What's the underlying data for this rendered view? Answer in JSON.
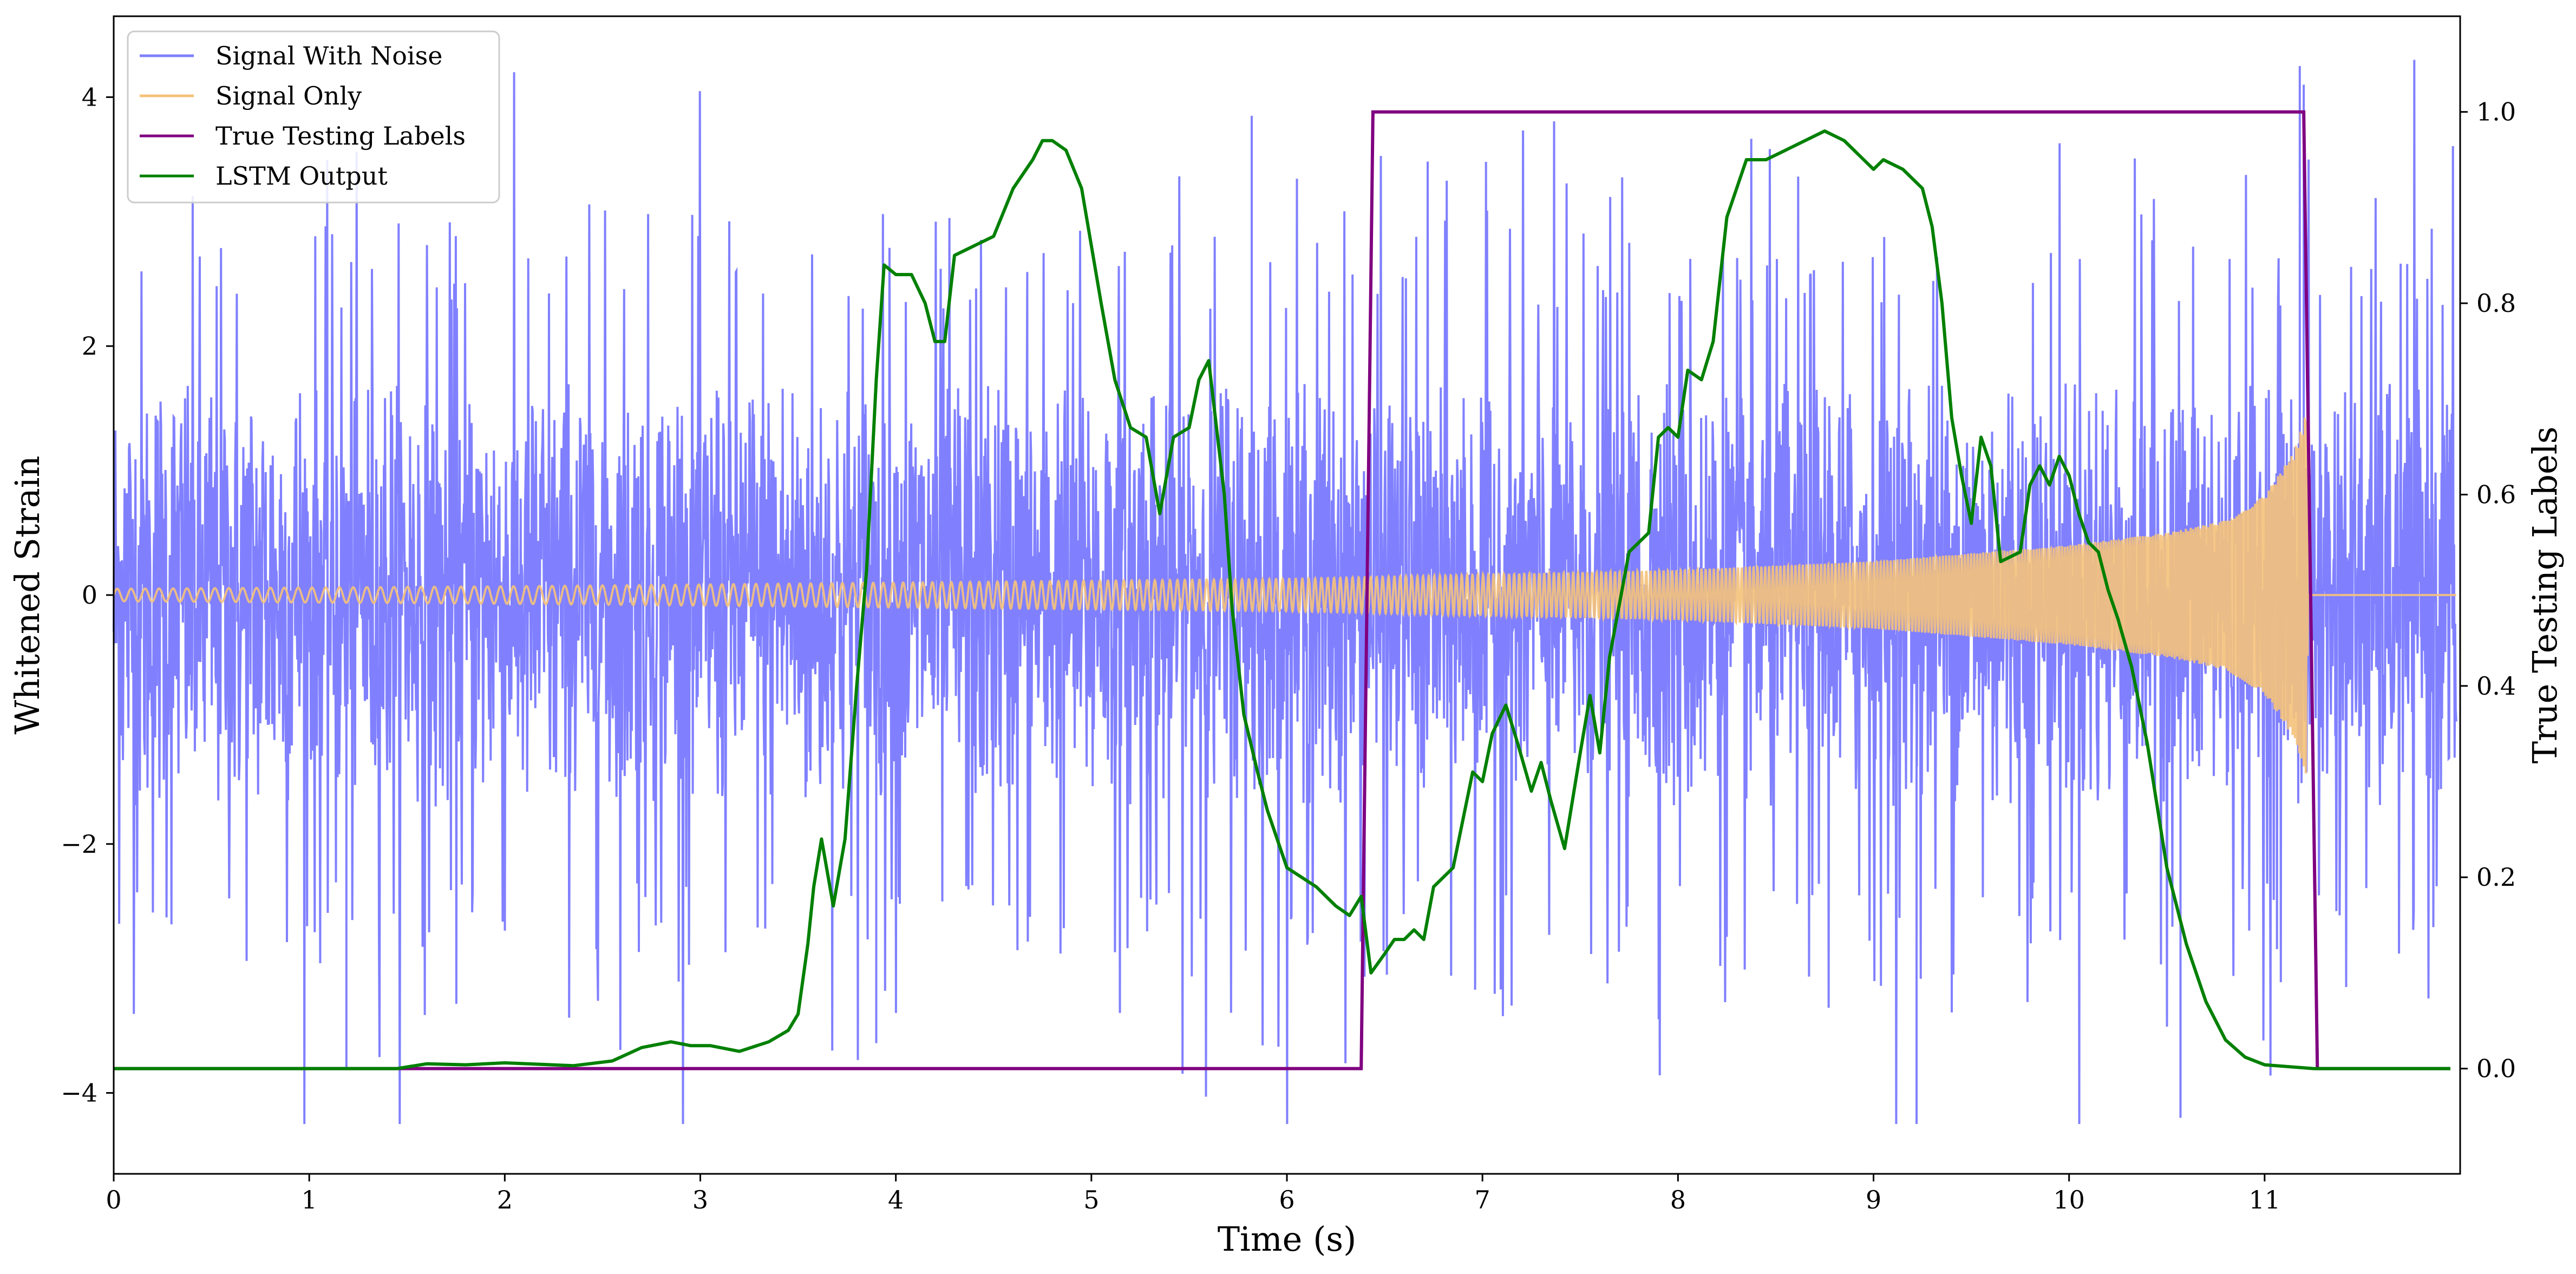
{
  "chart_data": {
    "type": "line",
    "xlabel": "Time (s)",
    "ylabel": "Whitened Strain",
    "y2label": "True Testing Labels",
    "xlim": [
      0,
      12
    ],
    "ylim": [
      -4.65,
      4.65
    ],
    "y2lim": [
      -0.11,
      1.1
    ],
    "x_ticks": [
      0,
      1,
      2,
      3,
      4,
      5,
      6,
      7,
      8,
      9,
      10,
      11
    ],
    "y_ticks": [
      -4,
      -2,
      0,
      2,
      4
    ],
    "y2_ticks": [
      0.0,
      0.2,
      0.4,
      0.6,
      0.8,
      1.0
    ],
    "grid": false,
    "legend_position": "top-left",
    "colors": {
      "signal_with_noise": "#8080ff",
      "signal_only": "#f5c27a",
      "true_testing_labels": "#800080",
      "lstm_output": "#008000"
    },
    "series": [
      {
        "name": "Signal With Noise",
        "axis": "left",
        "kind": "noise",
        "sampled_envelope": {
          "typical_abs": 1.5,
          "max": 4.3,
          "min": -4.25
        },
        "notable_spikes": [
          [
            1.19,
            -3.8
          ],
          [
            3.9,
            -3.6
          ],
          [
            5.82,
            3.85
          ],
          [
            9.22,
            -4.25
          ],
          [
            10.57,
            -4.2
          ],
          [
            11.18,
            4.25
          ],
          [
            11.2,
            4.1
          ]
        ]
      },
      {
        "name": "Signal Only",
        "axis": "left",
        "kind": "chirp",
        "amplitude_points": [
          [
            0,
            0.05
          ],
          [
            2,
            0.07
          ],
          [
            4,
            0.1
          ],
          [
            6,
            0.13
          ],
          [
            8,
            0.2
          ],
          [
            9,
            0.27
          ],
          [
            10,
            0.4
          ],
          [
            10.5,
            0.5
          ],
          [
            10.8,
            0.6
          ],
          [
            11.0,
            0.8
          ],
          [
            11.15,
            1.15
          ],
          [
            11.22,
            1.5
          ],
          [
            11.25,
            0
          ]
        ]
      },
      {
        "name": "True Testing Labels",
        "axis": "right",
        "points": [
          [
            0,
            0
          ],
          [
            6.38,
            0
          ],
          [
            6.44,
            1
          ],
          [
            11.2,
            1
          ],
          [
            11.27,
            0
          ],
          [
            11.95,
            0
          ]
        ]
      },
      {
        "name": "LSTM Output",
        "axis": "right",
        "points": [
          [
            0.0,
            0.0
          ],
          [
            0.85,
            0.0
          ],
          [
            1.45,
            0.0
          ],
          [
            1.6,
            0.005
          ],
          [
            1.8,
            0.004
          ],
          [
            2.0,
            0.006
          ],
          [
            2.35,
            0.003
          ],
          [
            2.55,
            0.008
          ],
          [
            2.7,
            0.022
          ],
          [
            2.85,
            0.028
          ],
          [
            2.95,
            0.024
          ],
          [
            3.05,
            0.024
          ],
          [
            3.2,
            0.018
          ],
          [
            3.35,
            0.028
          ],
          [
            3.45,
            0.04
          ],
          [
            3.5,
            0.057
          ],
          [
            3.55,
            0.13
          ],
          [
            3.58,
            0.19
          ],
          [
            3.62,
            0.24
          ],
          [
            3.68,
            0.17
          ],
          [
            3.74,
            0.24
          ],
          [
            3.8,
            0.4
          ],
          [
            3.85,
            0.52
          ],
          [
            3.9,
            0.72
          ],
          [
            3.94,
            0.84
          ],
          [
            4.0,
            0.83
          ],
          [
            4.08,
            0.83
          ],
          [
            4.15,
            0.8
          ],
          [
            4.2,
            0.76
          ],
          [
            4.25,
            0.76
          ],
          [
            4.3,
            0.85
          ],
          [
            4.4,
            0.86
          ],
          [
            4.5,
            0.87
          ],
          [
            4.6,
            0.92
          ],
          [
            4.7,
            0.95
          ],
          [
            4.75,
            0.97
          ],
          [
            4.8,
            0.97
          ],
          [
            4.87,
            0.96
          ],
          [
            4.95,
            0.92
          ],
          [
            5.05,
            0.8
          ],
          [
            5.12,
            0.72
          ],
          [
            5.2,
            0.67
          ],
          [
            5.28,
            0.66
          ],
          [
            5.35,
            0.58
          ],
          [
            5.42,
            0.66
          ],
          [
            5.5,
            0.67
          ],
          [
            5.55,
            0.72
          ],
          [
            5.6,
            0.74
          ],
          [
            5.68,
            0.6
          ],
          [
            5.72,
            0.48
          ],
          [
            5.78,
            0.37
          ],
          [
            5.85,
            0.31
          ],
          [
            5.9,
            0.27
          ],
          [
            6.0,
            0.21
          ],
          [
            6.15,
            0.19
          ],
          [
            6.25,
            0.17
          ],
          [
            6.32,
            0.16
          ],
          [
            6.38,
            0.18
          ],
          [
            6.43,
            0.1
          ],
          [
            6.5,
            0.12
          ],
          [
            6.55,
            0.135
          ],
          [
            6.6,
            0.135
          ],
          [
            6.65,
            0.145
          ],
          [
            6.7,
            0.135
          ],
          [
            6.75,
            0.19
          ],
          [
            6.85,
            0.21
          ],
          [
            6.95,
            0.31
          ],
          [
            7.0,
            0.3
          ],
          [
            7.05,
            0.35
          ],
          [
            7.12,
            0.38
          ],
          [
            7.18,
            0.34
          ],
          [
            7.25,
            0.29
          ],
          [
            7.3,
            0.32
          ],
          [
            7.35,
            0.28
          ],
          [
            7.42,
            0.23
          ],
          [
            7.5,
            0.33
          ],
          [
            7.55,
            0.39
          ],
          [
            7.6,
            0.33
          ],
          [
            7.65,
            0.43
          ],
          [
            7.75,
            0.54
          ],
          [
            7.85,
            0.56
          ],
          [
            7.9,
            0.66
          ],
          [
            7.95,
            0.67
          ],
          [
            8.0,
            0.66
          ],
          [
            8.05,
            0.73
          ],
          [
            8.12,
            0.72
          ],
          [
            8.18,
            0.76
          ],
          [
            8.25,
            0.89
          ],
          [
            8.35,
            0.95
          ],
          [
            8.45,
            0.95
          ],
          [
            8.55,
            0.96
          ],
          [
            8.65,
            0.97
          ],
          [
            8.75,
            0.98
          ],
          [
            8.85,
            0.97
          ],
          [
            8.95,
            0.95
          ],
          [
            9.0,
            0.94
          ],
          [
            9.05,
            0.95
          ],
          [
            9.15,
            0.94
          ],
          [
            9.25,
            0.92
          ],
          [
            9.3,
            0.88
          ],
          [
            9.35,
            0.8
          ],
          [
            9.4,
            0.68
          ],
          [
            9.45,
            0.62
          ],
          [
            9.5,
            0.57
          ],
          [
            9.55,
            0.66
          ],
          [
            9.6,
            0.63
          ],
          [
            9.65,
            0.53
          ],
          [
            9.75,
            0.54
          ],
          [
            9.8,
            0.61
          ],
          [
            9.85,
            0.63
          ],
          [
            9.9,
            0.61
          ],
          [
            9.95,
            0.64
          ],
          [
            10.0,
            0.62
          ],
          [
            10.05,
            0.58
          ],
          [
            10.1,
            0.55
          ],
          [
            10.15,
            0.54
          ],
          [
            10.2,
            0.5
          ],
          [
            10.25,
            0.47
          ],
          [
            10.32,
            0.42
          ],
          [
            10.4,
            0.34
          ],
          [
            10.5,
            0.21
          ],
          [
            10.6,
            0.13
          ],
          [
            10.7,
            0.07
          ],
          [
            10.8,
            0.03
          ],
          [
            10.9,
            0.012
          ],
          [
            11.0,
            0.004
          ],
          [
            11.25,
            0.0
          ],
          [
            11.5,
            0.0
          ],
          [
            11.95,
            0.0
          ]
        ]
      }
    ]
  }
}
